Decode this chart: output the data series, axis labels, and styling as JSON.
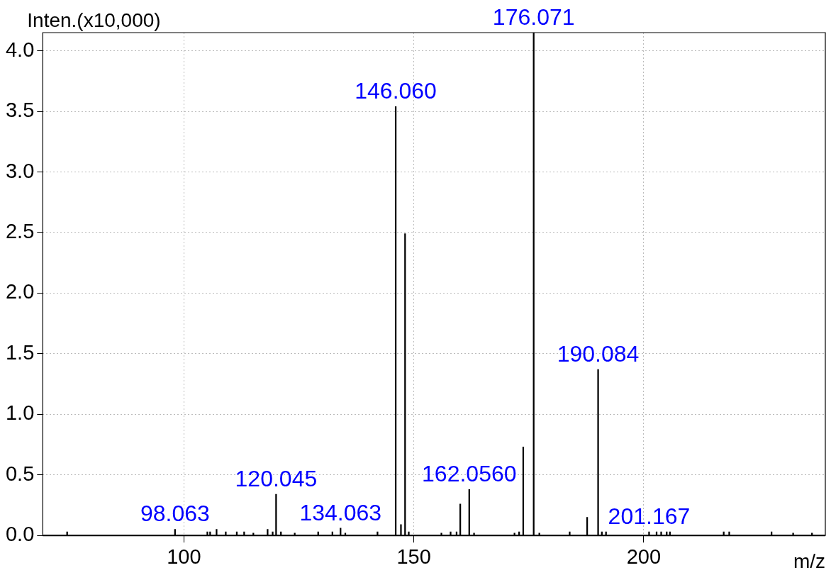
{
  "chart_data": {
    "type": "bar",
    "ylabel": "Inten.(x10,000)",
    "xlabel": "m/z",
    "color": "#000000",
    "grid": true,
    "legend": false,
    "x": [
      74.6,
      98.063,
      105.1,
      105.7,
      107.1,
      109.1,
      111.5,
      113.1,
      115.1,
      118.2,
      119.3,
      120.045,
      121.1,
      124.1,
      129.2,
      132.3,
      134.063,
      135.1,
      142.1,
      146.06,
      147.2,
      148.1,
      148.9,
      156.0,
      158.0,
      159.3,
      160.1,
      162.056,
      163.1,
      171.9,
      172.9,
      173.8,
      176.071,
      177.3,
      183.9,
      187.7,
      190.084,
      190.9,
      191.8,
      201.167,
      202.8,
      203.8,
      205.0,
      205.7,
      217.4,
      218.6,
      227.8,
      232.5,
      236.6
    ],
    "values": [
      0.03,
      0.05,
      0.03,
      0.03,
      0.05,
      0.03,
      0.03,
      0.03,
      0.02,
      0.05,
      0.03,
      0.34,
      0.03,
      0.02,
      0.03,
      0.03,
      0.06,
      0.02,
      0.03,
      3.54,
      0.09,
      2.49,
      0.03,
      0.02,
      0.03,
      0.03,
      0.26,
      0.38,
      0.02,
      0.02,
      0.03,
      0.73,
      4.15,
      0.02,
      0.03,
      0.15,
      1.37,
      0.03,
      0.03,
      0.03,
      0.03,
      0.03,
      0.03,
      0.03,
      0.03,
      0.03,
      0.03,
      0.02,
      0.02
    ],
    "xlim": [
      69.3,
      239.5
    ],
    "ylim": [
      0,
      4.15
    ],
    "xticks": [
      100,
      150,
      200
    ],
    "yticks": [
      {
        "value": 0,
        "label": "0.0"
      },
      {
        "value": 0.5,
        "label": "0.5"
      },
      {
        "value": 1,
        "label": "1.0"
      },
      {
        "value": 1.5,
        "label": "1.5"
      },
      {
        "value": 2,
        "label": "2.0"
      },
      {
        "value": 2.5,
        "label": "2.5"
      },
      {
        "value": 3,
        "label": "3.0"
      },
      {
        "value": 3.5,
        "label": "3.5"
      },
      {
        "value": 4,
        "label": "4.0"
      }
    ],
    "annotations": [
      {
        "text": "98.063",
        "x": 98.063,
        "y": 0.05
      },
      {
        "text": "120.045",
        "x": 120.045,
        "y": 0.34
      },
      {
        "text": "134.063",
        "x": 134.063,
        "y": 0.06
      },
      {
        "text": "146.060",
        "x": 146.06,
        "y": 3.54
      },
      {
        "text": "162.0560",
        "x": 162.056,
        "y": 0.38
      },
      {
        "text": "176.071",
        "x": 176.071,
        "y": 4.15
      },
      {
        "text": "190.084",
        "x": 190.084,
        "y": 1.37
      },
      {
        "text": "201.167",
        "x": 201.167,
        "y": 0.03
      }
    ]
  }
}
